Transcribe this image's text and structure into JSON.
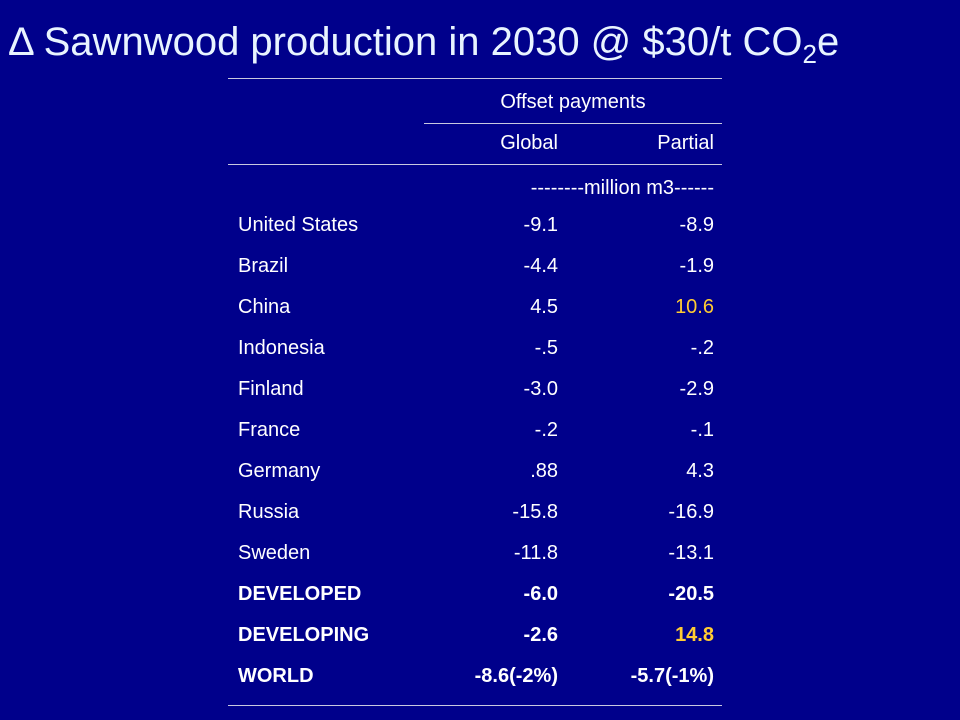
{
  "title": {
    "main": "Δ Sawnwood production in 2030 @ $30/t CO",
    "sub": "2",
    "suffix": "e"
  },
  "table": {
    "group_header": "Offset payments",
    "columns": [
      "Global",
      "Partial"
    ],
    "units": "--------million m3------",
    "rows": [
      {
        "label": "United States",
        "global": "-9.1",
        "partial": "-8.9"
      },
      {
        "label": "Brazil",
        "global": "-4.4",
        "partial": "-1.9"
      },
      {
        "label": "China",
        "global": "4.5",
        "partial": "10.6"
      },
      {
        "label": "Indonesia",
        "global": "-.5",
        "partial": "-.2"
      },
      {
        "label": "Finland",
        "global": "-3.0",
        "partial": "-2.9"
      },
      {
        "label": "France",
        "global": "-.2",
        "partial": "-.1"
      },
      {
        "label": "Germany",
        "global": ".88",
        "partial": "4.3"
      },
      {
        "label": "Russia",
        "global": "-15.8",
        "partial": "-16.9"
      },
      {
        "label": "Sweden",
        "global": "-11.8",
        "partial": "-13.1"
      },
      {
        "label": "DEVELOPED",
        "global": "-6.0",
        "partial": "-20.5"
      },
      {
        "label": "DEVELOPING",
        "global": "-2.6",
        "partial": "14.8"
      },
      {
        "label": "WORLD",
        "global": "-8.6(-2%)",
        "partial": "-5.7(-1%)"
      }
    ]
  },
  "colors": {
    "background": "#00008b",
    "text": "#ffffff",
    "highlight": "#ffcc33"
  }
}
